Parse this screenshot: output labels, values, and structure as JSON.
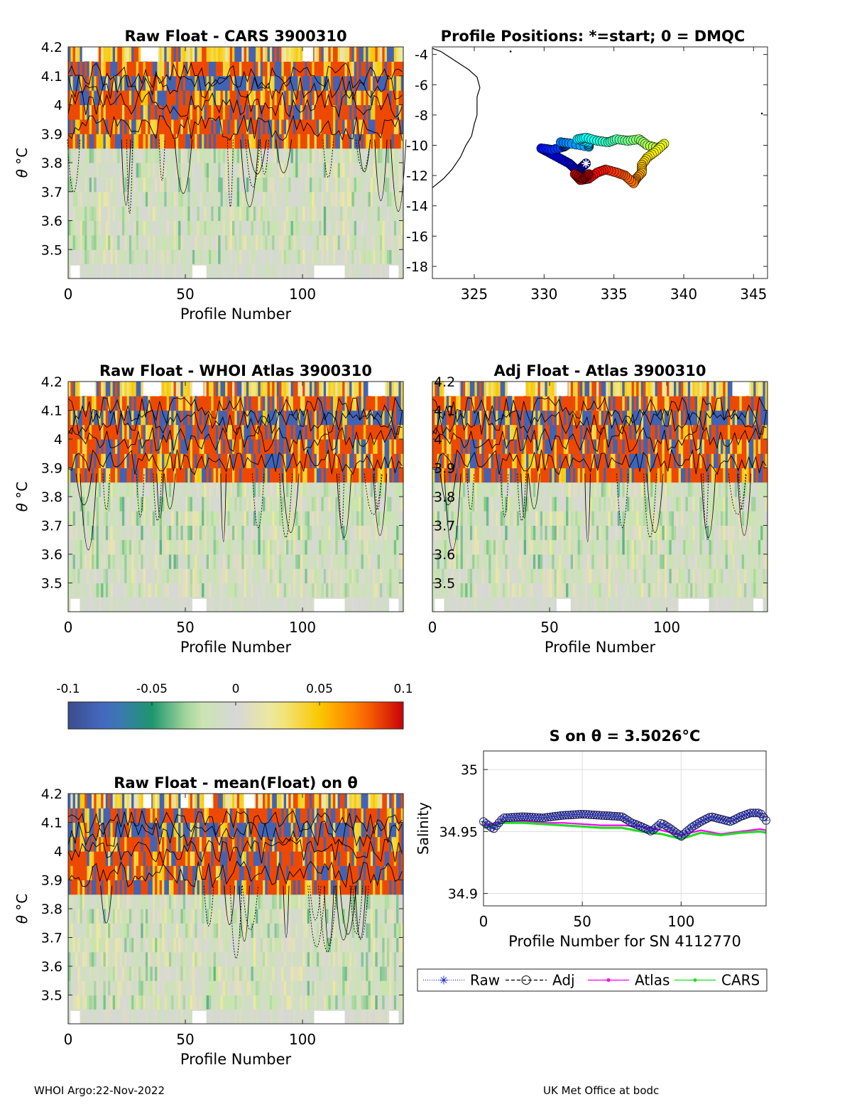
{
  "figure": {
    "footer_left": "WHOI Argo:22-Nov-2022",
    "footer_right": "UK Met Office at bodc",
    "theta_symbol": "θ",
    "ylabel_unit": " °C",
    "colors": {
      "raw": "#2233cc",
      "adj": "#000000",
      "adj_marker": "#1a1a66",
      "atlas": "#ff00ff",
      "cars": "#22dd22",
      "coast": "#000000"
    }
  },
  "chart_data": [
    {
      "type": "heatmap",
      "id": "cars",
      "title": "Raw Float - CARS  3900310",
      "xlabel": "Profile Number",
      "ylabel": "θ °C",
      "xlim": [
        0,
        143
      ],
      "ylim": [
        3.4,
        4.2
      ],
      "xticks": [
        "0",
        "50",
        "100"
      ],
      "yticks": [
        "3.5",
        "3.6",
        "3.7",
        "3.8",
        "3.9",
        "4",
        "4.1",
        "4.2"
      ],
      "theta_levels": [
        3.45,
        3.5,
        3.55,
        3.6,
        3.65,
        3.7,
        3.75,
        3.8,
        3.85,
        3.9,
        3.95,
        4.0,
        4.05,
        4.1,
        4.15
      ],
      "seed": 11
    },
    {
      "type": "scatter",
      "id": "positions",
      "title": "Profile Positions: *=start; 0 = DMQC",
      "xlim": [
        322,
        346
      ],
      "ylim": [
        -18.8,
        -3.5
      ],
      "xticks": [
        "325",
        "330",
        "335",
        "340",
        "345"
      ],
      "yticks": [
        "-18",
        "-16",
        "-14",
        "-12",
        "-10",
        "-8",
        "-6",
        "-4"
      ],
      "track": [
        {
          "x": 333.0,
          "y": -11.2
        },
        {
          "x": 332.4,
          "y": -11.7
        },
        {
          "x": 331.8,
          "y": -11.2
        },
        {
          "x": 331.0,
          "y": -10.8
        },
        {
          "x": 330.2,
          "y": -10.4
        },
        {
          "x": 329.8,
          "y": -10.2
        },
        {
          "x": 330.6,
          "y": -10.3
        },
        {
          "x": 331.4,
          "y": -10.1
        },
        {
          "x": 331.6,
          "y": -10.0
        },
        {
          "x": 331.2,
          "y": -9.8
        },
        {
          "x": 332.0,
          "y": -9.9
        },
        {
          "x": 333.2,
          "y": -10.1
        },
        {
          "x": 333.2,
          "y": -9.8
        },
        {
          "x": 332.4,
          "y": -9.6
        },
        {
          "x": 333.0,
          "y": -9.5
        },
        {
          "x": 333.8,
          "y": -9.7
        },
        {
          "x": 334.6,
          "y": -9.8
        },
        {
          "x": 335.2,
          "y": -9.6
        },
        {
          "x": 336.0,
          "y": -9.7
        },
        {
          "x": 336.8,
          "y": -9.6
        },
        {
          "x": 337.4,
          "y": -10.0
        },
        {
          "x": 338.2,
          "y": -10.2
        },
        {
          "x": 338.6,
          "y": -9.9
        },
        {
          "x": 338.0,
          "y": -10.4
        },
        {
          "x": 337.4,
          "y": -10.8
        },
        {
          "x": 337.0,
          "y": -11.3
        },
        {
          "x": 337.0,
          "y": -11.8
        },
        {
          "x": 336.6,
          "y": -12.2
        },
        {
          "x": 336.4,
          "y": -12.5
        },
        {
          "x": 335.8,
          "y": -12.0
        },
        {
          "x": 335.2,
          "y": -11.8
        },
        {
          "x": 334.4,
          "y": -11.6
        },
        {
          "x": 333.8,
          "y": -11.8
        },
        {
          "x": 333.2,
          "y": -12.2
        },
        {
          "x": 332.6,
          "y": -12.3
        },
        {
          "x": 332.2,
          "y": -11.9
        },
        {
          "x": 332.8,
          "y": -12.2
        },
        {
          "x": 333.2,
          "y": -11.9
        }
      ],
      "coast": [
        {
          "x": 322,
          "y": -3.6
        },
        {
          "x": 322.6,
          "y": -3.8
        },
        {
          "x": 323.6,
          "y": -4.4
        },
        {
          "x": 324.6,
          "y": -5.0
        },
        {
          "x": 325.2,
          "y": -5.5
        },
        {
          "x": 325.4,
          "y": -6.2
        },
        {
          "x": 325.2,
          "y": -6.8
        },
        {
          "x": 325.2,
          "y": -8.0
        },
        {
          "x": 325.0,
          "y": -8.6
        },
        {
          "x": 324.8,
          "y": -9.4
        },
        {
          "x": 324.4,
          "y": -10.0
        },
        {
          "x": 324.0,
          "y": -10.8
        },
        {
          "x": 323.4,
          "y": -11.6
        },
        {
          "x": 322.8,
          "y": -12.2
        },
        {
          "x": 322,
          "y": -12.8
        }
      ],
      "islands": [
        {
          "x": 327.6,
          "y": -3.8
        },
        {
          "x": 345.6,
          "y": -7.9
        }
      ]
    },
    {
      "type": "heatmap",
      "id": "whoi",
      "title": "Raw Float - WHOI Atlas  3900310",
      "xlabel": "Profile Number",
      "ylabel": "θ °C",
      "xlim": [
        0,
        143
      ],
      "ylim": [
        3.4,
        4.2
      ],
      "xticks": [
        "0",
        "50",
        "100"
      ],
      "yticks": [
        "3.5",
        "3.6",
        "3.7",
        "3.8",
        "3.9",
        "4",
        "4.1",
        "4.2"
      ],
      "theta_levels": [
        3.45,
        3.5,
        3.55,
        3.6,
        3.65,
        3.7,
        3.75,
        3.8,
        3.85,
        3.9,
        3.95,
        4.0,
        4.05,
        4.1,
        4.15
      ],
      "seed": 23
    },
    {
      "type": "heatmap",
      "id": "adj",
      "title": "Adj Float - Atlas  3900310",
      "xlabel": "Profile Number",
      "ylabel": "",
      "xlim": [
        0,
        143
      ],
      "ylim": [
        3.4,
        4.2
      ],
      "xticks": [
        "0",
        "50",
        "100"
      ],
      "yticks": [
        "3.5",
        "3.6",
        "3.7",
        "3.8",
        "3.9",
        "4",
        "4.1",
        "4.2"
      ],
      "theta_levels": [
        3.45,
        3.5,
        3.55,
        3.6,
        3.65,
        3.7,
        3.75,
        3.8,
        3.85,
        3.9,
        3.95,
        4.0,
        4.05,
        4.1,
        4.15
      ],
      "seed": 23
    },
    {
      "type": "heatmap",
      "id": "colorbar",
      "title": "",
      "range": [
        -0.1,
        0.1
      ],
      "ticks": [
        "-0.1",
        "-0.05",
        "0",
        "0.05",
        "0.1"
      ]
    },
    {
      "type": "heatmap",
      "id": "mean",
      "title": "Raw Float - mean(Float) on θ",
      "xlabel": "Profile Number",
      "ylabel": "θ °C",
      "xlim": [
        0,
        143
      ],
      "ylim": [
        3.4,
        4.2
      ],
      "xticks": [
        "0",
        "50",
        "100"
      ],
      "yticks": [
        "3.5",
        "3.6",
        "3.7",
        "3.8",
        "3.9",
        "4",
        "4.1",
        "4.2"
      ],
      "theta_levels": [
        3.45,
        3.5,
        3.55,
        3.6,
        3.65,
        3.7,
        3.75,
        3.8,
        3.85,
        3.9,
        3.95,
        4.0,
        4.05,
        4.1,
        4.15
      ],
      "seed": 37
    },
    {
      "type": "line",
      "id": "salinity",
      "title": "S on θ = 3.5026°C",
      "xlabel": "Profile Number for SN 4112770",
      "ylabel": "Salinity",
      "xlim": [
        0,
        143
      ],
      "ylim": [
        34.89,
        35.015
      ],
      "xticks": [
        "0",
        "50",
        "100"
      ],
      "yticks": [
        "34.9",
        "34.95",
        "35"
      ],
      "grid": true,
      "legend": "bottom",
      "series": [
        {
          "name": "Raw",
          "x": [
            0,
            5,
            10,
            20,
            30,
            40,
            50,
            60,
            70,
            75,
            80,
            85,
            90,
            95,
            100,
            105,
            110,
            115,
            120,
            125,
            130,
            135,
            140,
            143
          ],
          "y": [
            34.958,
            34.952,
            34.961,
            34.962,
            34.961,
            34.963,
            34.964,
            34.963,
            34.962,
            34.957,
            34.954,
            34.95,
            34.957,
            34.952,
            34.946,
            34.953,
            34.958,
            34.962,
            34.96,
            34.958,
            34.962,
            34.965,
            34.965,
            34.959
          ]
        },
        {
          "name": "Adj",
          "x": [
            0,
            5,
            10,
            20,
            30,
            40,
            50,
            60,
            70,
            75,
            80,
            85,
            90,
            95,
            100,
            105,
            110,
            115,
            120,
            125,
            130,
            135,
            140,
            143
          ],
          "y": [
            34.958,
            34.952,
            34.961,
            34.962,
            34.961,
            34.963,
            34.964,
            34.963,
            34.962,
            34.957,
            34.954,
            34.95,
            34.957,
            34.952,
            34.946,
            34.953,
            34.958,
            34.962,
            34.96,
            34.958,
            34.962,
            34.965,
            34.965,
            34.959
          ]
        },
        {
          "name": "Atlas",
          "x": [
            0,
            10,
            20,
            30,
            40,
            50,
            60,
            70,
            80,
            90,
            100,
            110,
            120,
            130,
            140,
            143
          ],
          "y": [
            34.955,
            34.958,
            34.958,
            34.957,
            34.957,
            34.956,
            34.955,
            34.955,
            34.954,
            34.951,
            34.947,
            34.951,
            34.948,
            34.95,
            34.952,
            34.951
          ]
        },
        {
          "name": "CARS",
          "x": [
            0,
            10,
            20,
            30,
            40,
            50,
            60,
            70,
            80,
            90,
            100,
            110,
            120,
            130,
            140,
            143
          ],
          "y": [
            34.953,
            34.957,
            34.957,
            34.956,
            34.955,
            34.954,
            34.953,
            34.953,
            34.95,
            34.948,
            34.944,
            34.949,
            34.947,
            34.949,
            34.95,
            34.949
          ]
        }
      ]
    }
  ]
}
